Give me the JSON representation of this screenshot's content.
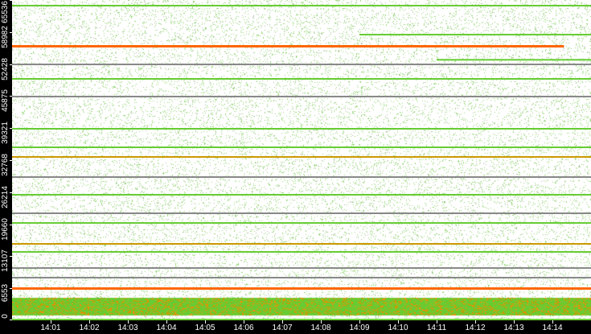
{
  "chart_data": {
    "type": "scatter",
    "title": "",
    "xlabel": "",
    "ylabel": "",
    "xlim": [
      "14:00",
      "14:15"
    ],
    "ylim": [
      0,
      65536
    ],
    "x_ticks": [
      "14:01",
      "14:02",
      "14:03",
      "14:04",
      "14:05",
      "14:06",
      "14:07",
      "14:08",
      "14:09",
      "14:10",
      "14:11",
      "14:12",
      "14:13",
      "14:14"
    ],
    "y_ticks": [
      0,
      6553,
      13107,
      19660,
      26214,
      32768,
      39321,
      45875,
      52428,
      58982,
      65536
    ],
    "grid": false,
    "colors": {
      "background": "#ffffff",
      "axis": "#000000",
      "low": "#66cc33",
      "mid": "#cc9900",
      "high": "#ff6600",
      "line": "#888888"
    },
    "persistent_ports": [
      {
        "port": 64380,
        "start": "14:00",
        "end": "14:15",
        "color": "#66cc33"
      },
      {
        "port": 58450,
        "start": "14:09",
        "end": "14:15",
        "color": "#66cc33"
      },
      {
        "port": 56150,
        "start": "14:00",
        "end": "14:14.3",
        "color": "#ff6600"
      },
      {
        "port": 53300,
        "start": "14:11",
        "end": "14:15",
        "color": "#66cc33"
      },
      {
        "port": 52360,
        "start": "14:00",
        "end": "14:15",
        "color": "#888888"
      },
      {
        "port": 49400,
        "start": "14:00",
        "end": "14:15",
        "color": "#66cc33"
      },
      {
        "port": 45780,
        "start": "14:00",
        "end": "14:15",
        "color": "#888888"
      },
      {
        "port": 39190,
        "start": "14:00",
        "end": "14:15",
        "color": "#66cc33"
      },
      {
        "port": 35400,
        "start": "14:00",
        "end": "14:15",
        "color": "#66cc33"
      },
      {
        "port": 33430,
        "start": "14:00",
        "end": "14:15",
        "color": "#cc9900"
      },
      {
        "port": 29310,
        "start": "14:00",
        "end": "14:15",
        "color": "#888888"
      },
      {
        "port": 25690,
        "start": "14:00",
        "end": "14:15",
        "color": "#66cc33"
      },
      {
        "port": 21900,
        "start": "14:00",
        "end": "14:15",
        "color": "#888888"
      },
      {
        "port": 19920,
        "start": "14:00",
        "end": "14:15",
        "color": "#66cc33"
      },
      {
        "port": 15640,
        "start": "14:00",
        "end": "14:15",
        "color": "#cc9900"
      },
      {
        "port": 14000,
        "start": "14:00",
        "end": "14:15",
        "color": "#66cc33"
      },
      {
        "port": 10700,
        "start": "14:00",
        "end": "14:15",
        "color": "#888888"
      },
      {
        "port": 8730,
        "start": "14:00",
        "end": "14:15",
        "color": "#888888"
      },
      {
        "port": 6590,
        "start": "14:00",
        "end": "14:15",
        "color": "#ff6600"
      },
      {
        "port": 150,
        "start": "14:00",
        "end": "14:15",
        "color": "#66cc33"
      }
    ],
    "dense_band": {
      "port_min": 1000,
      "port_max": 4600,
      "colors": [
        "#66cc33",
        "#99bb22",
        "#cc9900",
        "#ff8800"
      ]
    }
  }
}
